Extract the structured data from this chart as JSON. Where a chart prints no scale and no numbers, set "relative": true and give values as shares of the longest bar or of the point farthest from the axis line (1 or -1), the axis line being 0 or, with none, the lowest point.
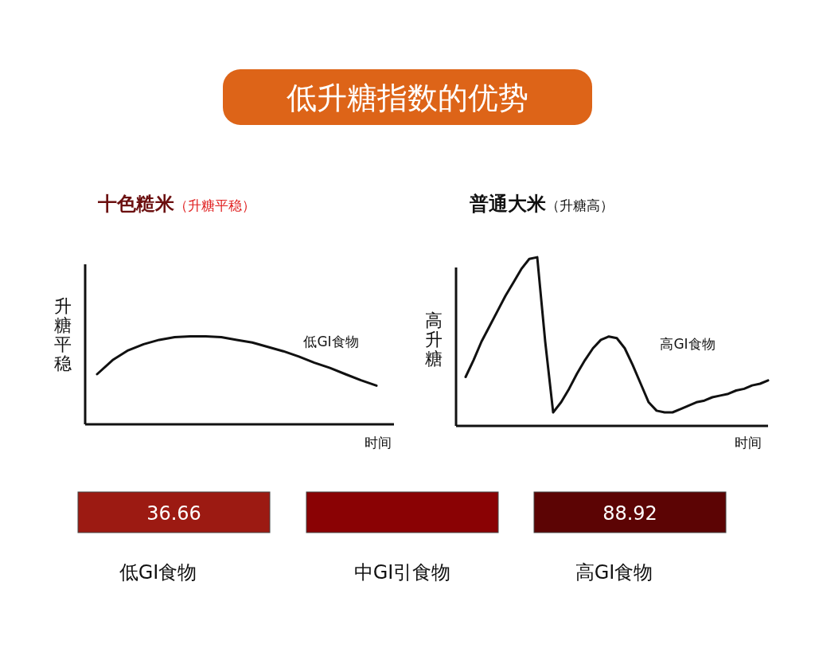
{
  "chart_data": [
    {
      "type": "other",
      "title": "低升糖指数的优势"
    },
    {
      "type": "line",
      "title": "十色糙米",
      "subtitle": "（升糖平稳）",
      "ylabel": "升糖平稳",
      "xlabel": "时间",
      "annotations": [
        "低GI食物"
      ],
      "relative": true,
      "color": "#111111",
      "categories": [
        null,
        null,
        null,
        null,
        null,
        null,
        null,
        null,
        null,
        null,
        null,
        null,
        null,
        null,
        null,
        null,
        null,
        null,
        null
      ],
      "values": [
        0.57,
        0.73,
        0.84,
        0.91,
        0.96,
        0.99,
        1,
        1,
        0.99,
        0.96,
        0.93,
        0.88,
        0.83,
        0.77,
        0.7,
        0.64,
        0.57,
        0.5,
        0.44
      ]
    },
    {
      "type": "line",
      "title": "普通大米",
      "subtitle": "（升糖高）",
      "ylabel": "高升糖",
      "xlabel": "时间",
      "annotations": [
        "高GI食物"
      ],
      "relative": true,
      "color": "#111111",
      "categories": [
        null,
        null,
        null,
        null,
        null,
        null,
        null,
        null,
        null,
        null,
        null,
        null,
        null,
        null,
        null,
        null,
        null,
        null,
        null,
        null,
        null,
        null,
        null,
        null,
        null,
        null,
        null,
        null,
        null,
        null,
        null,
        null,
        null,
        null,
        null,
        null,
        null,
        null,
        null
      ],
      "values": [
        0.29,
        0.39,
        0.5,
        0.59,
        0.68,
        0.77,
        0.85,
        0.93,
        0.99,
        1,
        0.5,
        0.08,
        0.14,
        0.22,
        0.31,
        0.39,
        0.46,
        0.51,
        0.53,
        0.52,
        0.46,
        0.36,
        0.25,
        0.14,
        0.09,
        0.08,
        0.08,
        0.1,
        0.12,
        0.14,
        0.15,
        0.17,
        0.18,
        0.19,
        0.21,
        0.22,
        0.24,
        0.25,
        0.27
      ]
    },
    {
      "type": "other",
      "categories": [
        "低GI食物",
        "中GI引食物",
        "高GI食物"
      ],
      "values": [
        36.66,
        null,
        88.92
      ],
      "data_labels": true,
      "colors": [
        "#9c1a12",
        "#8a0204",
        "#5c0404"
      ]
    }
  ]
}
